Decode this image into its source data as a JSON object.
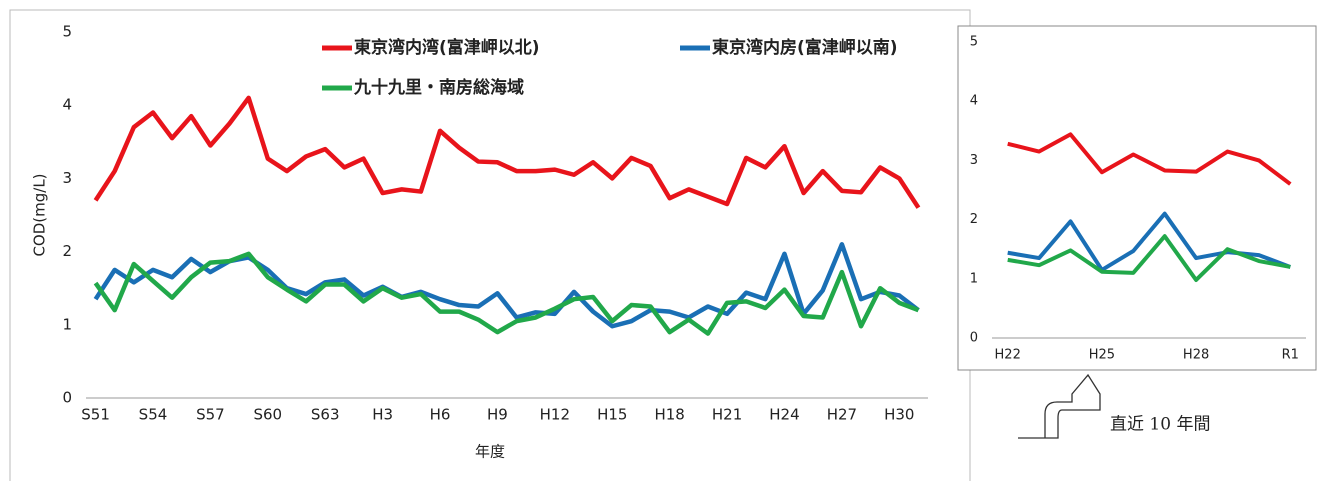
{
  "chart_data": [
    {
      "type": "line",
      "y_label": "COD(mg/L)",
      "x_label": "年度",
      "categories": [
        "S51",
        null,
        null,
        "S54",
        null,
        null,
        "S57",
        null,
        null,
        "S60",
        null,
        null,
        "S63",
        null,
        null,
        "H3",
        null,
        null,
        "H6",
        null,
        null,
        "H9",
        null,
        null,
        "H12",
        null,
        null,
        "H15",
        null,
        null,
        "H18",
        null,
        null,
        "H21",
        null,
        null,
        "H24",
        null,
        null,
        "H27",
        null,
        null,
        "H30",
        null
      ],
      "ylim": [
        0,
        5
      ],
      "yticks": [
        0,
        1,
        2,
        3,
        4,
        5
      ],
      "series": [
        {
          "name": "東京湾内湾(富津岬以北)",
          "color": "#e8141b",
          "values": [
            2.7,
            3.1,
            3.7,
            3.9,
            3.55,
            3.85,
            3.45,
            3.75,
            4.1,
            3.27,
            3.1,
            3.3,
            3.4,
            3.15,
            3.27,
            2.8,
            2.85,
            2.82,
            3.65,
            3.42,
            3.23,
            3.22,
            3.1,
            3.1,
            3.12,
            3.05,
            3.22,
            3.0,
            3.28,
            3.17,
            2.73,
            2.85,
            2.75,
            2.65,
            3.28,
            3.15,
            3.44,
            2.8,
            3.1,
            2.83,
            2.81,
            3.15,
            3.0,
            2.6
          ]
        },
        {
          "name": "東京湾内房(富津岬以南)",
          "color": "#1a6fb5",
          "values": [
            1.35,
            1.75,
            1.58,
            1.75,
            1.65,
            1.9,
            1.72,
            1.87,
            1.92,
            1.75,
            1.5,
            1.42,
            1.58,
            1.62,
            1.4,
            1.52,
            1.38,
            1.45,
            1.35,
            1.27,
            1.25,
            1.43,
            1.1,
            1.17,
            1.15,
            1.45,
            1.18,
            0.98,
            1.05,
            1.2,
            1.18,
            1.1,
            1.25,
            1.15,
            1.44,
            1.35,
            1.97,
            1.15,
            1.47,
            2.1,
            1.35,
            1.45,
            1.4,
            1.2
          ]
        },
        {
          "name": "九十九里・南房総海域",
          "color": "#21a84a",
          "values": [
            1.57,
            1.2,
            1.83,
            1.6,
            1.37,
            1.65,
            1.85,
            1.87,
            1.97,
            1.65,
            1.48,
            1.32,
            1.55,
            1.55,
            1.32,
            1.5,
            1.37,
            1.42,
            1.18,
            1.18,
            1.07,
            0.9,
            1.05,
            1.1,
            1.22,
            1.35,
            1.38,
            1.05,
            1.27,
            1.25,
            0.9,
            1.07,
            0.88,
            1.3,
            1.32,
            1.23,
            1.48,
            1.12,
            1.1,
            1.72,
            0.98,
            1.5,
            1.3,
            1.2
          ]
        }
      ]
    },
    {
      "type": "line",
      "annotation": "直近 10 年間",
      "categories": [
        "H22",
        null,
        null,
        "H25",
        null,
        null,
        "H28",
        null,
        null,
        "R1"
      ],
      "ylim": [
        0,
        5
      ],
      "yticks": [
        0,
        1,
        2,
        3,
        4,
        5
      ],
      "series": [
        {
          "color": "#e8141b",
          "values": [
            3.28,
            3.15,
            3.44,
            2.8,
            3.1,
            2.83,
            2.81,
            3.15,
            3.0,
            2.6
          ]
        },
        {
          "color": "#1a6fb5",
          "values": [
            1.44,
            1.35,
            1.97,
            1.15,
            1.47,
            2.1,
            1.35,
            1.45,
            1.4,
            1.2
          ]
        },
        {
          "color": "#21a84a",
          "values": [
            1.32,
            1.23,
            1.48,
            1.12,
            1.1,
            1.72,
            0.98,
            1.5,
            1.3,
            1.2
          ]
        }
      ]
    }
  ]
}
